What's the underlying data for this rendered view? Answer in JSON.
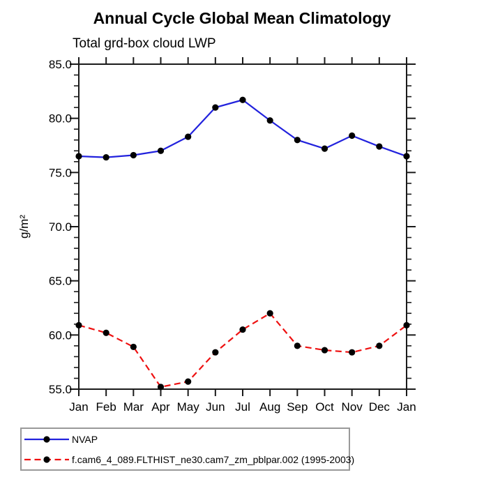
{
  "chart_data": {
    "type": "line",
    "title": "Annual Cycle Global Mean Climatology",
    "subtitle": "Total grd-box cloud LWP",
    "xlabel": "",
    "ylabel": "g/m²",
    "ylim": [
      55.0,
      85.0
    ],
    "y_major_step": 5,
    "y_minor_step": 1,
    "y_tick_labels": [
      "55.0",
      "60.0",
      "65.0",
      "70.0",
      "75.0",
      "80.0",
      "85.0"
    ],
    "x": [
      "Jan",
      "Feb",
      "Mar",
      "Apr",
      "May",
      "Jun",
      "Jul",
      "Aug",
      "Sep",
      "Oct",
      "Nov",
      "Dec",
      "Jan"
    ],
    "grid": false,
    "legend_position": "bottom-left",
    "marker_shape": "circle",
    "marker_color": "#000000",
    "axis_color": "#1a1a1a",
    "series": [
      {
        "name": "NVAP",
        "color": "#2222dd",
        "line_style": "solid",
        "values": [
          76.5,
          76.4,
          76.6,
          77.0,
          78.3,
          81.0,
          81.7,
          79.8,
          78.0,
          77.2,
          78.4,
          77.4,
          76.5
        ]
      },
      {
        "name": "f.cam6_4_089.FLTHIST_ne30.cam7_zm_pblpar.002 (1995-2003)",
        "color": "#ee1111",
        "line_style": "dashed",
        "values": [
          60.9,
          60.2,
          58.9,
          55.2,
          55.7,
          58.4,
          60.5,
          62.0,
          59.0,
          58.6,
          58.4,
          59.0,
          60.9
        ]
      }
    ]
  }
}
